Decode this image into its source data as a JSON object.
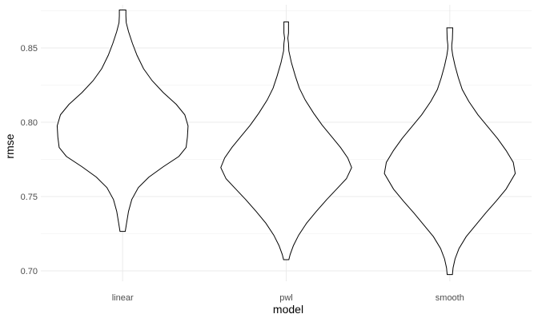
{
  "chart_data": {
    "type": "violin",
    "xlabel": "model",
    "ylabel": "rmse",
    "ylim": [
      0.693,
      0.879
    ],
    "grid": true,
    "y_ticks": [
      {
        "value": 0.7,
        "label": "0.70"
      },
      {
        "value": 0.75,
        "label": "0.75"
      },
      {
        "value": 0.8,
        "label": "0.80"
      },
      {
        "value": 0.85,
        "label": "0.85"
      }
    ],
    "categories": [
      "linear",
      "pwl",
      "smooth"
    ],
    "series": [
      {
        "category": "linear",
        "min": 0.7265,
        "max": 0.8755,
        "max_width_at": 0.7975,
        "profile": [
          [
            0.7265,
            0.04
          ],
          [
            0.732,
            0.06
          ],
          [
            0.74,
            0.09
          ],
          [
            0.748,
            0.14
          ],
          [
            0.756,
            0.24
          ],
          [
            0.763,
            0.4
          ],
          [
            0.77,
            0.62
          ],
          [
            0.777,
            0.86
          ],
          [
            0.783,
            0.97
          ],
          [
            0.79,
            0.99
          ],
          [
            0.7975,
            1.0
          ],
          [
            0.805,
            0.95
          ],
          [
            0.812,
            0.82
          ],
          [
            0.82,
            0.62
          ],
          [
            0.828,
            0.45
          ],
          [
            0.836,
            0.32
          ],
          [
            0.845,
            0.22
          ],
          [
            0.853,
            0.15
          ],
          [
            0.861,
            0.09
          ],
          [
            0.867,
            0.055
          ],
          [
            0.8715,
            0.05
          ],
          [
            0.8755,
            0.05
          ]
        ]
      },
      {
        "category": "pwl",
        "min": 0.7075,
        "max": 0.8675,
        "max_width_at": 0.7695,
        "profile": [
          [
            0.7075,
            0.04
          ],
          [
            0.711,
            0.06
          ],
          [
            0.717,
            0.11
          ],
          [
            0.724,
            0.19
          ],
          [
            0.732,
            0.31
          ],
          [
            0.74,
            0.46
          ],
          [
            0.748,
            0.62
          ],
          [
            0.755,
            0.77
          ],
          [
            0.762,
            0.92
          ],
          [
            0.7695,
            1.0
          ],
          [
            0.776,
            0.94
          ],
          [
            0.783,
            0.83
          ],
          [
            0.79,
            0.7
          ],
          [
            0.798,
            0.55
          ],
          [
            0.806,
            0.42
          ],
          [
            0.815,
            0.29
          ],
          [
            0.823,
            0.2
          ],
          [
            0.831,
            0.14
          ],
          [
            0.84,
            0.08
          ],
          [
            0.848,
            0.04
          ],
          [
            0.853,
            0.035
          ],
          [
            0.8565,
            0.025
          ],
          [
            0.86,
            0.035
          ],
          [
            0.8675,
            0.035
          ]
        ]
      },
      {
        "category": "smooth",
        "min": 0.6975,
        "max": 0.8635,
        "max_width_at": 0.7655,
        "profile": [
          [
            0.6975,
            0.04
          ],
          [
            0.702,
            0.05
          ],
          [
            0.708,
            0.08
          ],
          [
            0.715,
            0.14
          ],
          [
            0.723,
            0.25
          ],
          [
            0.731,
            0.4
          ],
          [
            0.739,
            0.55
          ],
          [
            0.747,
            0.71
          ],
          [
            0.755,
            0.86
          ],
          [
            0.7655,
            1.0
          ],
          [
            0.773,
            0.97
          ],
          [
            0.781,
            0.86
          ],
          [
            0.789,
            0.73
          ],
          [
            0.797,
            0.58
          ],
          [
            0.805,
            0.43
          ],
          [
            0.814,
            0.29
          ],
          [
            0.822,
            0.19
          ],
          [
            0.83,
            0.13
          ],
          [
            0.838,
            0.08
          ],
          [
            0.845,
            0.045
          ],
          [
            0.8495,
            0.03
          ],
          [
            0.852,
            0.03
          ],
          [
            0.856,
            0.04
          ],
          [
            0.8635,
            0.045
          ]
        ]
      }
    ]
  }
}
